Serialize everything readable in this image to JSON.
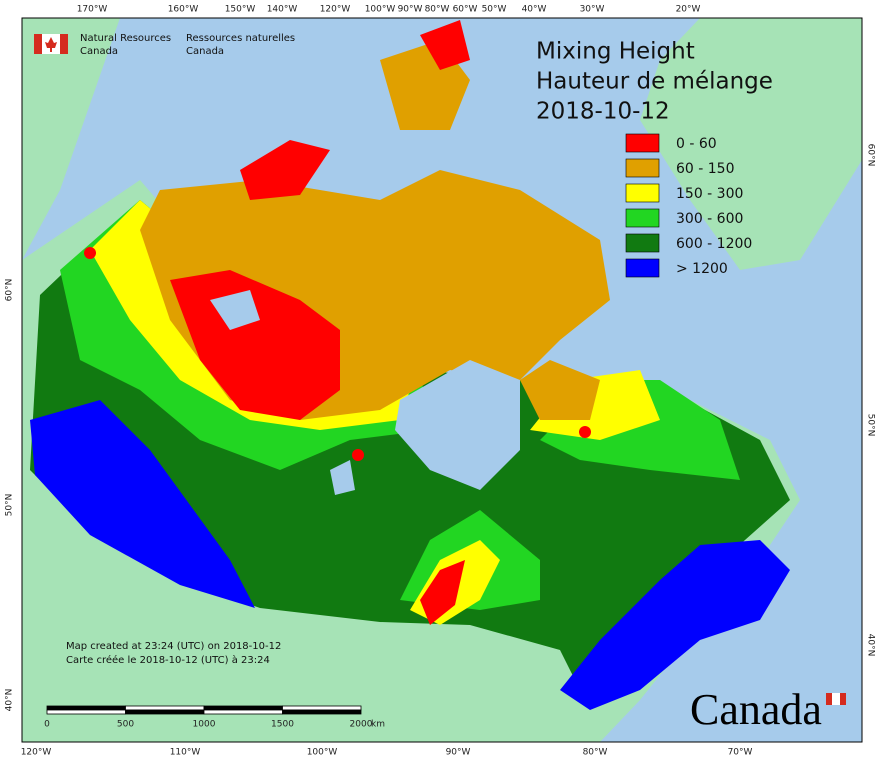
{
  "agency": {
    "en": [
      "Natural Resources",
      "Canada"
    ],
    "fr": [
      "Ressources naturelles",
      "Canada"
    ]
  },
  "title": [
    "Mixing Height",
    "Hauteur de mélange",
    "2018-10-12"
  ],
  "legend": [
    {
      "label": "0 - 60",
      "color": "#ff0000"
    },
    {
      "label": "60 - 150",
      "color": "#e0a000"
    },
    {
      "label": "150 - 300",
      "color": "#ffff00"
    },
    {
      "label": "300 - 600",
      "color": "#22d622"
    },
    {
      "label": "600 - 1200",
      "color": "#117a11"
    },
    {
      "label": "> 1200",
      "color": "#0000ff"
    }
  ],
  "notes": [
    "Map created at 23:24 (UTC) on 2018-10-12",
    "Carte créée le 2018-10-12 (UTC) à 23:24"
  ],
  "scale_bar": {
    "ticks": [
      "0",
      "500",
      "1000",
      "1500",
      "2000"
    ],
    "unit": "km"
  },
  "graticule": {
    "top": [
      "170°W",
      "160°W",
      "150°W",
      "140°W",
      "120°W",
      "100°W",
      "90°W",
      "80°W",
      "60°W",
      "50°W",
      "40°W",
      "30°W",
      "20°W"
    ],
    "bottom": [
      "120°W",
      "110°W",
      "100°W",
      "90°W",
      "80°W",
      "70°W"
    ],
    "left": [
      "60°N",
      "50°N",
      "40°N"
    ],
    "right": [
      "60°N",
      "50°N",
      "40°N"
    ]
  },
  "wordmark": "Canada"
}
